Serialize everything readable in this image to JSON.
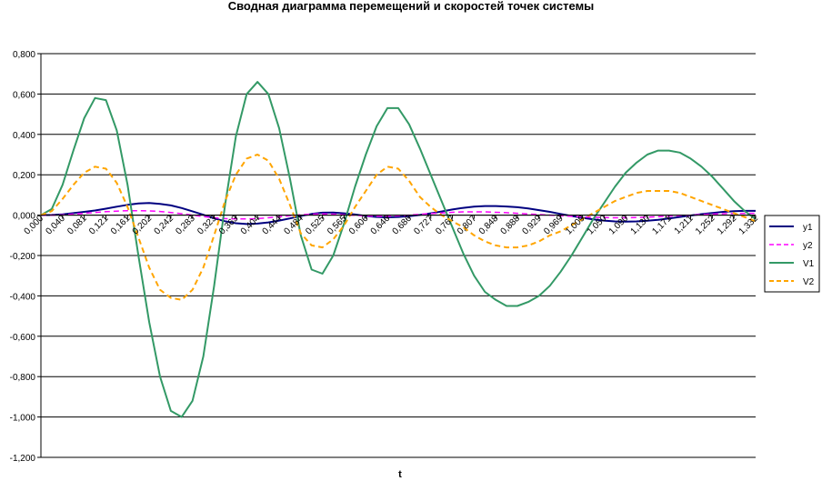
{
  "chart_data": {
    "type": "line",
    "title": "Сводная диаграмма перемещений и скоростей точек системы",
    "xlabel": "t",
    "ylabel": "",
    "ylim": [
      -1.2,
      0.8
    ],
    "ytick_labels": [
      "0,800",
      "0,600",
      "0,400",
      "0,200",
      "0,000",
      "-0,200",
      "-0,400",
      "-0,600",
      "-0,800",
      "-1,000",
      "-1,200"
    ],
    "ytick_values": [
      0.8,
      0.6,
      0.4,
      0.2,
      0.0,
      -0.2,
      -0.4,
      -0.6,
      -0.8,
      -1.0,
      -1.2
    ],
    "xtick_labels": [
      "0,000",
      "0,040",
      "0,081",
      "0,121",
      "0,161",
      "0,202",
      "0,242",
      "0,283",
      "0,323",
      "0,363",
      "0,404",
      "0,444",
      "0,484",
      "0,525",
      "0,565",
      "0,606",
      "0,646",
      "0,686",
      "0,727",
      "0,767",
      "0,807",
      "0,848",
      "0,888",
      "0,929",
      "0,969",
      "1,009",
      "1,050",
      "1,090",
      "1,130",
      "1,171",
      "1,211",
      "1,252",
      "1,292",
      "1,332"
    ],
    "x_count": 67,
    "grid": true,
    "legend": "right",
    "series": [
      {
        "name": "y1",
        "color": "#000080",
        "dash": "none",
        "width": 2,
        "values": [
          0.0,
          0.001,
          0.004,
          0.01,
          0.016,
          0.023,
          0.032,
          0.042,
          0.051,
          0.058,
          0.06,
          0.056,
          0.048,
          0.035,
          0.019,
          0.002,
          -0.016,
          -0.03,
          -0.04,
          -0.044,
          -0.042,
          -0.036,
          -0.027,
          -0.016,
          -0.004,
          0.006,
          0.012,
          0.013,
          0.009,
          0.003,
          -0.004,
          -0.009,
          -0.011,
          -0.009,
          -0.005,
          0.001,
          0.009,
          0.018,
          0.028,
          0.036,
          0.042,
          0.045,
          0.045,
          0.043,
          0.039,
          0.033,
          0.025,
          0.016,
          0.006,
          -0.004,
          -0.013,
          -0.021,
          -0.027,
          -0.031,
          -0.032,
          -0.031,
          -0.028,
          -0.023,
          -0.016,
          -0.009,
          -0.002,
          0.005,
          0.011,
          0.016,
          0.02,
          0.021,
          0.021
        ]
      },
      {
        "name": "y2",
        "color": "#ff00ff",
        "dash": "6,4",
        "width": 1.5,
        "values": [
          0.0,
          0.0,
          0.002,
          0.005,
          0.009,
          0.013,
          0.017,
          0.02,
          0.022,
          0.022,
          0.021,
          0.018,
          0.013,
          0.007,
          0.0,
          -0.007,
          -0.013,
          -0.017,
          -0.019,
          -0.019,
          -0.017,
          -0.013,
          -0.008,
          -0.003,
          0.002,
          0.005,
          0.006,
          0.005,
          0.002,
          -0.001,
          -0.004,
          -0.005,
          -0.005,
          -0.003,
          0.0,
          0.004,
          0.008,
          0.011,
          0.014,
          0.016,
          0.016,
          0.016,
          0.014,
          0.012,
          0.009,
          0.006,
          0.003,
          0.0,
          -0.003,
          -0.006,
          -0.009,
          -0.011,
          -0.012,
          -0.013,
          -0.013,
          -0.012,
          -0.01,
          -0.008,
          -0.005,
          -0.002,
          0.0,
          0.003,
          0.005,
          0.007,
          0.008,
          0.009,
          0.009
        ]
      },
      {
        "name": "V1",
        "color": "#339966",
        "dash": "none",
        "width": 2,
        "values": [
          0.0,
          0.03,
          0.15,
          0.32,
          0.48,
          0.58,
          0.57,
          0.42,
          0.15,
          -0.2,
          -0.53,
          -0.8,
          -0.97,
          -1.0,
          -0.92,
          -0.7,
          -0.35,
          0.05,
          0.39,
          0.6,
          0.66,
          0.6,
          0.43,
          0.18,
          -0.1,
          -0.27,
          -0.29,
          -0.2,
          -0.04,
          0.14,
          0.3,
          0.44,
          0.53,
          0.53,
          0.45,
          0.33,
          0.2,
          0.07,
          -0.06,
          -0.19,
          -0.3,
          -0.38,
          -0.42,
          -0.45,
          -0.45,
          -0.43,
          -0.4,
          -0.35,
          -0.28,
          -0.2,
          -0.11,
          -0.02,
          0.06,
          0.14,
          0.21,
          0.26,
          0.3,
          0.32,
          0.32,
          0.31,
          0.28,
          0.24,
          0.19,
          0.13,
          0.07,
          0.02,
          -0.02
        ]
      },
      {
        "name": "V2",
        "color": "#ffa500",
        "dash": "6,4",
        "width": 2,
        "values": [
          0.0,
          0.02,
          0.08,
          0.15,
          0.21,
          0.24,
          0.23,
          0.16,
          0.04,
          -0.11,
          -0.26,
          -0.37,
          -0.41,
          -0.42,
          -0.37,
          -0.26,
          -0.1,
          0.07,
          0.2,
          0.28,
          0.3,
          0.27,
          0.18,
          0.05,
          -0.09,
          -0.15,
          -0.16,
          -0.12,
          -0.05,
          0.04,
          0.12,
          0.2,
          0.24,
          0.23,
          0.17,
          0.09,
          0.04,
          0.0,
          -0.03,
          -0.06,
          -0.1,
          -0.13,
          -0.15,
          -0.16,
          -0.16,
          -0.15,
          -0.13,
          -0.1,
          -0.08,
          -0.05,
          -0.02,
          0.01,
          0.04,
          0.07,
          0.09,
          0.11,
          0.12,
          0.12,
          0.12,
          0.11,
          0.09,
          0.07,
          0.05,
          0.03,
          0.01,
          -0.01,
          -0.03
        ]
      }
    ]
  }
}
